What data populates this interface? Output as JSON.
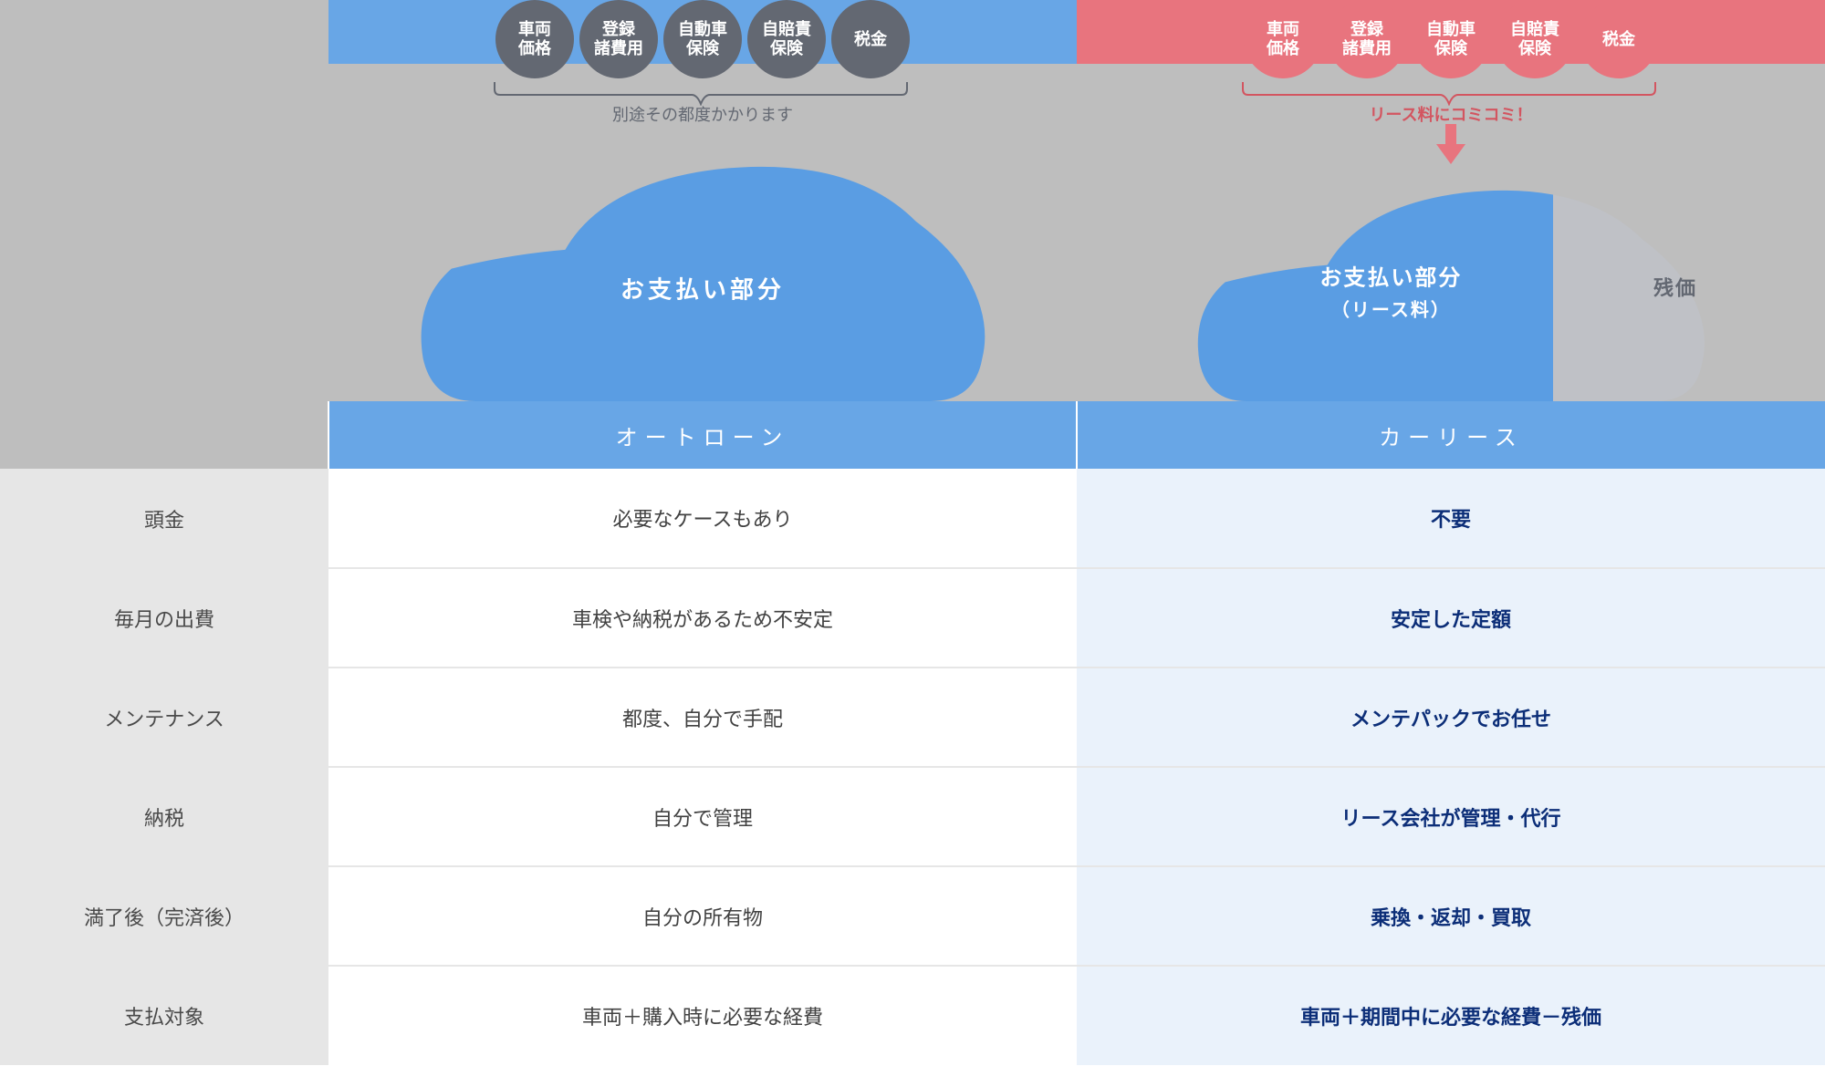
{
  "colors": {
    "blue_band": "#68a6e6",
    "red_band": "#e8747e",
    "badge_gray": "#636872",
    "badge_red": "#e8747e",
    "car_blue": "#5a9de3",
    "car_gray": "#bfc1c6",
    "page_gray": "#bebebe",
    "label_gray": "#e6e6e6",
    "lease_bg": "#eaf2fb",
    "lease_text": "#0c2e78",
    "body_text": "#414141",
    "bracket_gray": "#636872",
    "bracket_red": "#d35560"
  },
  "badges": [
    {
      "label": "車両\n価格"
    },
    {
      "label": "登録\n諸費用"
    },
    {
      "label": "自動車\n保険"
    },
    {
      "label": "自賠責\n保険"
    },
    {
      "label": "税金"
    }
  ],
  "loan": {
    "bracket_caption": "別途その都度かかります",
    "car_label": "お支払い部分",
    "header": "オートローン"
  },
  "lease": {
    "bracket_caption": "リース料にコミコミ！",
    "car_label": "お支払い部分",
    "car_label_sub": "（リース料）",
    "residual_label": "残価",
    "header": "カーリース"
  },
  "rows": [
    {
      "label": "頭金",
      "loan": "必要なケースもあり",
      "lease": "不要"
    },
    {
      "label": "毎月の出費",
      "loan": "車検や納税があるため不安定",
      "lease": "安定した定額"
    },
    {
      "label": "メンテナンス",
      "loan": "都度、自分で手配",
      "lease": "メンテパックでお任せ"
    },
    {
      "label": "納税",
      "loan": "自分で管理",
      "lease": "リース会社が管理・代行"
    },
    {
      "label": "満了後（完済後）",
      "loan": "自分の所有物",
      "lease": "乗換・返却・買取"
    },
    {
      "label": "支払対象",
      "loan": "車両＋購入時に必要な経費",
      "lease": "車両＋期間中に必要な経費－残価"
    }
  ]
}
